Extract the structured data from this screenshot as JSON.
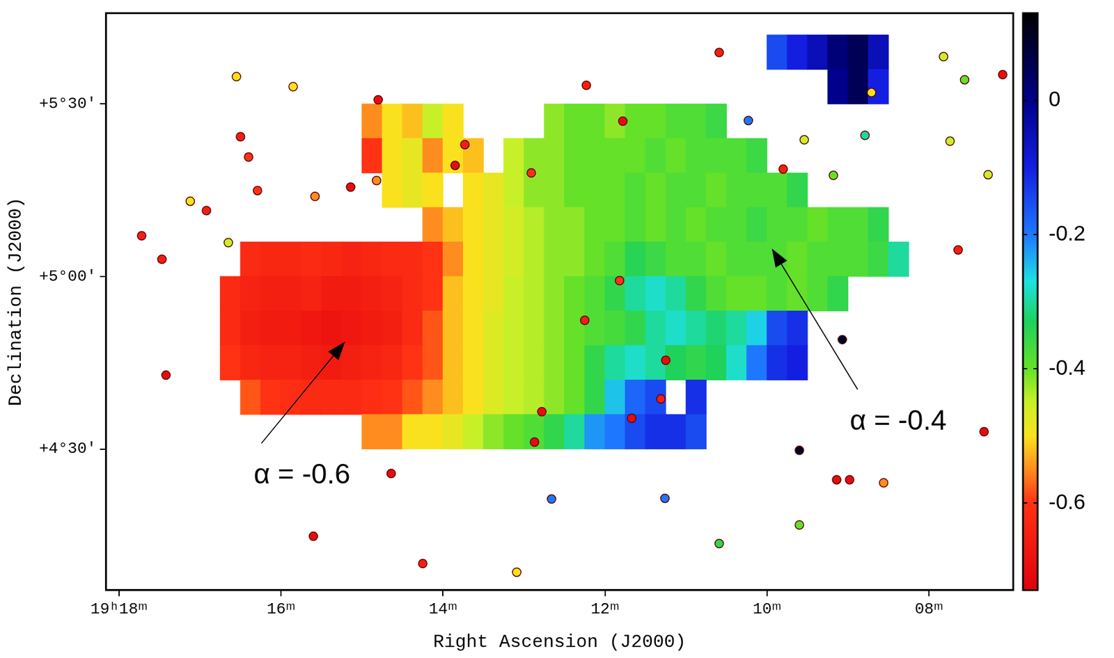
{
  "chart_data": {
    "type": "heatmap",
    "x_label": "Right Ascension (J2000)",
    "y_label": "Declination (J2000)",
    "xlim": [
      18.16,
      6.96
    ],
    "xticks": [
      {
        "value": 18,
        "label": "19ʰ18ᵐ"
      },
      {
        "value": 16,
        "label": "16ᵐ"
      },
      {
        "value": 14,
        "label": "14ᵐ"
      },
      {
        "value": 12,
        "label": "12ᵐ"
      },
      {
        "value": 10,
        "label": "10ᵐ"
      },
      {
        "value": 8,
        "label": "08ᵐ"
      }
    ],
    "ylim": [
      4.091,
      5.763
    ],
    "yticks": [
      {
        "value": 4.5,
        "label": "+4°30′"
      },
      {
        "value": 5.0,
        "label": "+5°00′"
      },
      {
        "value": 5.5,
        "label": "+5°30′"
      }
    ],
    "grid": false,
    "x": [
      16.875,
      16.625,
      16.375,
      16.125,
      15.875,
      15.625,
      15.375,
      15.125,
      14.875,
      14.625,
      14.375,
      14.125,
      13.875,
      13.625,
      13.375,
      13.125,
      12.875,
      12.625,
      12.375,
      12.125,
      11.875,
      11.625,
      11.375,
      11.125,
      10.875,
      10.625,
      10.375,
      10.125,
      9.875,
      9.625,
      9.375,
      9.125,
      8.875,
      8.625,
      8.375
    ],
    "y": [
      5.65,
      5.55,
      5.45,
      5.35,
      5.25,
      5.15,
      5.05,
      4.95,
      4.85,
      4.75,
      4.65,
      4.55
    ],
    "cells": [
      [
        null,
        null,
        null,
        null,
        null,
        null,
        null,
        null,
        null,
        null,
        null,
        null,
        null,
        null,
        null,
        null,
        null,
        null,
        null,
        null,
        null,
        null,
        null,
        null,
        null,
        null,
        null,
        null,
        -0.15,
        -0.1,
        -0.05,
        0.02,
        0.05,
        -0.05,
        null
      ],
      [
        null,
        null,
        null,
        null,
        null,
        null,
        null,
        null,
        null,
        null,
        null,
        null,
        null,
        null,
        null,
        null,
        null,
        null,
        null,
        null,
        null,
        null,
        null,
        null,
        null,
        null,
        null,
        null,
        null,
        null,
        null,
        0,
        0.05,
        -0.1,
        null
      ],
      [
        null,
        null,
        null,
        null,
        null,
        null,
        null,
        null,
        -0.55,
        -0.5,
        -0.52,
        -0.45,
        -0.5,
        null,
        null,
        null,
        null,
        -0.42,
        -0.4,
        -0.4,
        -0.42,
        -0.4,
        -0.4,
        -0.38,
        -0.38,
        -0.36,
        null,
        null,
        null,
        null,
        null,
        null,
        null,
        null,
        null
      ],
      [
        null,
        null,
        null,
        null,
        null,
        null,
        null,
        null,
        -0.6,
        -0.5,
        -0.48,
        -0.55,
        -0.5,
        -0.52,
        null,
        -0.45,
        -0.42,
        -0.42,
        -0.4,
        -0.4,
        -0.4,
        -0.4,
        -0.38,
        -0.4,
        -0.38,
        -0.38,
        -0.38,
        -0.36,
        null,
        null,
        null,
        null,
        null,
        null,
        null
      ],
      [
        null,
        null,
        null,
        null,
        null,
        null,
        null,
        null,
        null,
        -0.5,
        -0.48,
        -0.5,
        null,
        -0.5,
        -0.48,
        -0.45,
        -0.42,
        -0.42,
        -0.4,
        -0.4,
        -0.4,
        -0.38,
        -0.4,
        -0.38,
        -0.38,
        -0.4,
        -0.38,
        -0.38,
        -0.38,
        -0.35,
        null,
        null,
        null,
        null,
        null
      ],
      [
        null,
        null,
        null,
        null,
        null,
        null,
        null,
        null,
        null,
        null,
        null,
        -0.55,
        -0.52,
        -0.5,
        -0.48,
        -0.46,
        -0.44,
        -0.42,
        -0.42,
        -0.4,
        -0.4,
        -0.38,
        -0.4,
        -0.38,
        -0.4,
        -0.38,
        -0.38,
        -0.36,
        -0.38,
        -0.38,
        -0.4,
        -0.38,
        -0.38,
        -0.35,
        null
      ],
      [
        null,
        null,
        -0.62,
        -0.63,
        -0.63,
        -0.62,
        -0.63,
        -0.64,
        -0.63,
        -0.62,
        -0.62,
        -0.6,
        -0.55,
        -0.5,
        -0.48,
        -0.46,
        -0.44,
        -0.42,
        -0.42,
        -0.4,
        -0.38,
        -0.34,
        -0.36,
        -0.38,
        -0.38,
        -0.4,
        -0.38,
        -0.38,
        -0.38,
        -0.4,
        -0.38,
        -0.38,
        -0.38,
        -0.36,
        -0.3
      ],
      [
        null,
        -0.62,
        -0.64,
        -0.65,
        -0.65,
        -0.64,
        -0.66,
        -0.66,
        -0.65,
        -0.64,
        -0.62,
        -0.6,
        -0.52,
        -0.5,
        -0.48,
        -0.45,
        -0.44,
        -0.42,
        -0.4,
        -0.38,
        -0.35,
        -0.3,
        -0.28,
        -0.3,
        -0.35,
        -0.38,
        -0.4,
        -0.4,
        -0.38,
        -0.4,
        -0.38,
        -0.35,
        null,
        null,
        null
      ],
      [
        null,
        -0.62,
        -0.65,
        -0.66,
        -0.66,
        -0.67,
        -0.68,
        -0.67,
        -0.66,
        -0.65,
        -0.62,
        -0.58,
        -0.52,
        -0.5,
        -0.47,
        -0.45,
        -0.44,
        -0.42,
        -0.4,
        -0.38,
        -0.37,
        -0.35,
        -0.3,
        -0.28,
        -0.3,
        -0.32,
        -0.3,
        -0.26,
        -0.15,
        -0.12,
        null,
        null,
        null,
        null,
        null
      ],
      [
        null,
        -0.6,
        -0.63,
        -0.64,
        -0.64,
        -0.65,
        -0.66,
        -0.65,
        -0.64,
        -0.63,
        -0.6,
        -0.58,
        -0.52,
        -0.5,
        -0.47,
        -0.45,
        -0.44,
        -0.42,
        -0.4,
        -0.35,
        -0.3,
        -0.28,
        -0.3,
        -0.33,
        -0.35,
        -0.33,
        -0.28,
        -0.2,
        -0.12,
        -0.1,
        null,
        null,
        null,
        null,
        null
      ],
      [
        null,
        null,
        -0.58,
        -0.6,
        -0.61,
        -0.62,
        -0.62,
        -0.62,
        -0.61,
        -0.6,
        -0.58,
        -0.55,
        -0.52,
        -0.5,
        -0.47,
        -0.45,
        -0.44,
        -0.42,
        -0.4,
        -0.35,
        -0.25,
        -0.18,
        -0.15,
        null,
        -0.12,
        null,
        null,
        null,
        null,
        null,
        null,
        null,
        null,
        null,
        null
      ],
      [
        null,
        null,
        null,
        null,
        null,
        null,
        null,
        null,
        -0.55,
        -0.55,
        -0.5,
        -0.5,
        -0.48,
        -0.45,
        -0.42,
        -0.4,
        -0.38,
        -0.35,
        -0.3,
        -0.22,
        -0.2,
        -0.15,
        -0.12,
        -0.12,
        -0.15,
        null,
        null,
        null,
        null,
        null,
        null,
        null,
        null,
        null,
        null
      ]
    ],
    "sources": {
      "marker": "circle",
      "x": [
        10.59,
        12.23,
        14.8,
        16.55,
        15.85,
        16.5,
        16.4,
        16.29,
        15.14,
        14.82,
        15.58,
        17.12,
        16.92,
        17.72,
        17.47,
        16.65,
        17.42,
        14.64,
        15.6,
        14.25,
        13.09,
        12.87,
        10.59,
        9.6,
        9.07,
        9.14,
        8.98,
        8.56,
        7.32,
        7.09,
        7.64,
        7.27,
        9.18,
        9.54,
        8.79,
        9.8,
        7.56,
        7.82,
        7.74,
        11.26,
        12.66,
        9.6,
        10.23,
        11.78,
        12.91,
        11.82,
        12.78,
        11.67,
        11.31,
        11.25,
        12.25,
        13.73,
        13.85,
        8.71
      ],
      "y": [
        5.649,
        5.554,
        5.512,
        5.579,
        5.55,
        5.405,
        5.346,
        5.249,
        5.259,
        5.278,
        5.232,
        5.218,
        5.191,
        5.118,
        5.05,
        5.098,
        4.714,
        4.429,
        4.247,
        4.168,
        4.143,
        4.52,
        4.226,
        4.496,
        4.817,
        4.411,
        4.411,
        4.402,
        4.55,
        5.585,
        5.077,
        5.295,
        5.293,
        5.396,
        5.409,
        5.311,
        5.57,
        5.637,
        5.392,
        4.357,
        4.355,
        4.28,
        5.452,
        5.45,
        5.3,
        4.988,
        4.608,
        4.589,
        4.645,
        4.757,
        4.873,
        5.382,
        5.322,
        5.533
      ],
      "values": [
        -0.65,
        -0.65,
        -0.7,
        -0.5,
        -0.5,
        -0.65,
        -0.6,
        -0.6,
        -0.7,
        -0.55,
        -0.55,
        -0.5,
        -0.65,
        -0.65,
        -0.65,
        -0.45,
        -0.7,
        -0.7,
        -0.7,
        -0.65,
        -0.5,
        -0.7,
        -0.35,
        0.1,
        0.1,
        -0.7,
        -0.7,
        -0.55,
        -0.7,
        -0.7,
        -0.65,
        -0.45,
        -0.4,
        -0.45,
        -0.3,
        -0.65,
        -0.4,
        -0.45,
        -0.45,
        -0.2,
        -0.2,
        -0.4,
        -0.2,
        -0.7,
        -0.6,
        -0.6,
        -0.7,
        -0.7,
        -0.65,
        -0.7,
        -0.65,
        -0.65,
        -0.7,
        -0.5
      ]
    },
    "colorbar": {
      "range": [
        -0.73,
        0.13
      ],
      "ticks": [
        0,
        -0.2,
        -0.4,
        -0.6
      ]
    },
    "annotations": [
      {
        "text": "α = -0.6",
        "x": 15.21,
        "y": 4.811,
        "text_x": 15.74,
        "text_y": 4.423
      },
      {
        "text": "α = -0.4",
        "x": 9.94,
        "y": 5.081,
        "text_x": 8.38,
        "text_y": 4.579
      }
    ]
  }
}
